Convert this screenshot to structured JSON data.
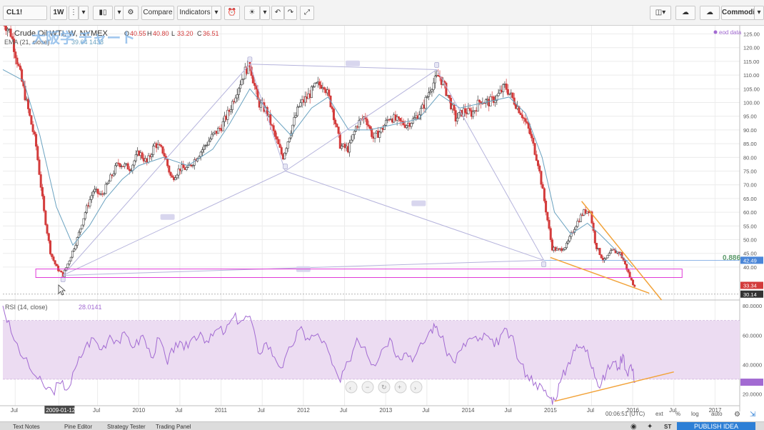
{
  "toolbar": {
    "symbol": "CL1!",
    "interval": "1W",
    "compare_label": "Compare",
    "indicators_label": "Indicators",
    "layout_label": "Commodity"
  },
  "chart_data": {
    "type": "candlestick",
    "title": "Crude Oil WTI, W, NYMEX",
    "ohlc": {
      "o_label": "O",
      "o": "40.55",
      "h_label": "H",
      "h": "40.80",
      "l_label": "L",
      "l": "33.20",
      "c_label": "C",
      "c": "36.51"
    },
    "ema_legend": "EMA (21, close)",
    "ema_value": "39.64 1438",
    "watermark": "大阪学 チャート",
    "eod_label": "eod data",
    "price_axis": [
      125,
      120,
      115,
      110,
      105,
      100,
      95,
      90,
      85,
      80,
      75,
      70,
      65,
      60,
      55,
      50,
      45,
      40
    ],
    "price_axis_labels": [
      "125.00",
      "120.00",
      "115.00",
      "110.00",
      "105.00",
      "100.00",
      "95.00",
      "90.00",
      "85.00",
      "80.00",
      "75.00",
      "70.00",
      "65.00",
      "60.00",
      "55.00",
      "50.00",
      "45.00",
      "40.00"
    ],
    "price_ylim": [
      28,
      128
    ],
    "price_markers": [
      {
        "value": 42.49,
        "label": "42.49",
        "color": "#4a86d8"
      },
      {
        "value": 33.34,
        "label": "33.34",
        "color": "#d33b3b"
      },
      {
        "value": 30.14,
        "label": "30.14",
        "color": "#333333"
      }
    ],
    "fib_label": "0.886",
    "x_axis": [
      {
        "t": 2008.5,
        "label": "Jul"
      },
      {
        "t": 2009.03,
        "label": "2009-01-12",
        "highlight": true
      },
      {
        "t": 2009.5,
        "label": "Jul"
      },
      {
        "t": 2010.0,
        "label": "2010"
      },
      {
        "t": 2010.5,
        "label": "Jul"
      },
      {
        "t": 2011.0,
        "label": "2011"
      },
      {
        "t": 2011.5,
        "label": "Jul"
      },
      {
        "t": 2012.0,
        "label": "2012"
      },
      {
        "t": 2012.5,
        "label": "Jul"
      },
      {
        "t": 2013.0,
        "label": "2013"
      },
      {
        "t": 2013.5,
        "label": "Jul"
      },
      {
        "t": 2014.0,
        "label": "2014"
      },
      {
        "t": 2014.5,
        "label": "Jul"
      },
      {
        "t": 2015.0,
        "label": "2015"
      },
      {
        "t": 2015.5,
        "label": "Jul"
      },
      {
        "t": 2016.0,
        "label": "2016"
      },
      {
        "t": 2016.5,
        "label": "Jul"
      },
      {
        "t": 2017.0,
        "label": "2017"
      }
    ],
    "xlim": [
      2008.35,
      2017.3
    ],
    "price_path": [
      [
        2008.35,
        130
      ],
      [
        2008.45,
        125
      ],
      [
        2008.6,
        105
      ],
      [
        2008.75,
        85
      ],
      [
        2008.85,
        60
      ],
      [
        2008.93,
        45
      ],
      [
        2009.0,
        40
      ],
      [
        2009.08,
        37
      ],
      [
        2009.15,
        42
      ],
      [
        2009.25,
        50
      ],
      [
        2009.35,
        60
      ],
      [
        2009.45,
        68
      ],
      [
        2009.55,
        66
      ],
      [
        2009.65,
        72
      ],
      [
        2009.75,
        78
      ],
      [
        2009.9,
        76
      ],
      [
        2010.0,
        82
      ],
      [
        2010.1,
        78
      ],
      [
        2010.2,
        85
      ],
      [
        2010.3,
        82
      ],
      [
        2010.4,
        72
      ],
      [
        2010.5,
        76
      ],
      [
        2010.6,
        76
      ],
      [
        2010.7,
        80
      ],
      [
        2010.8,
        84
      ],
      [
        2010.9,
        88
      ],
      [
        2011.0,
        91
      ],
      [
        2011.1,
        97
      ],
      [
        2011.2,
        105
      ],
      [
        2011.3,
        112
      ],
      [
        2011.35,
        114
      ],
      [
        2011.45,
        100
      ],
      [
        2011.55,
        97
      ],
      [
        2011.65,
        88
      ],
      [
        2011.75,
        80
      ],
      [
        2011.85,
        90
      ],
      [
        2011.95,
        99
      ],
      [
        2012.05,
        102
      ],
      [
        2012.15,
        106
      ],
      [
        2012.25,
        107
      ],
      [
        2012.35,
        98
      ],
      [
        2012.45,
        84
      ],
      [
        2012.55,
        83
      ],
      [
        2012.65,
        92
      ],
      [
        2012.75,
        95
      ],
      [
        2012.85,
        87
      ],
      [
        2012.95,
        90
      ],
      [
        2013.05,
        95
      ],
      [
        2013.15,
        93
      ],
      [
        2013.25,
        92
      ],
      [
        2013.35,
        94
      ],
      [
        2013.45,
        98
      ],
      [
        2013.55,
        106
      ],
      [
        2013.65,
        110
      ],
      [
        2013.75,
        103
      ],
      [
        2013.85,
        94
      ],
      [
        2013.95,
        97
      ],
      [
        2014.05,
        96
      ],
      [
        2014.15,
        101
      ],
      [
        2014.25,
        100
      ],
      [
        2014.35,
        102
      ],
      [
        2014.45,
        106
      ],
      [
        2014.55,
        101
      ],
      [
        2014.65,
        96
      ],
      [
        2014.75,
        89
      ],
      [
        2014.85,
        78
      ],
      [
        2014.95,
        60
      ],
      [
        2015.02,
        47
      ],
      [
        2015.1,
        46
      ],
      [
        2015.2,
        48
      ],
      [
        2015.3,
        55
      ],
      [
        2015.4,
        60
      ],
      [
        2015.48,
        61
      ],
      [
        2015.55,
        48
      ],
      [
        2015.65,
        42
      ],
      [
        2015.75,
        46
      ],
      [
        2015.85,
        45
      ],
      [
        2015.92,
        40
      ],
      [
        2015.97,
        36
      ],
      [
        2016.0,
        34
      ],
      [
        2016.03,
        33.3
      ]
    ],
    "ema_path": [
      [
        2008.35,
        112
      ],
      [
        2008.6,
        108
      ],
      [
        2008.8,
        88
      ],
      [
        2009.0,
        62
      ],
      [
        2009.2,
        48
      ],
      [
        2009.4,
        55
      ],
      [
        2009.6,
        65
      ],
      [
        2009.8,
        72
      ],
      [
        2010.0,
        77
      ],
      [
        2010.3,
        80
      ],
      [
        2010.6,
        77
      ],
      [
        2010.9,
        83
      ],
      [
        2011.1,
        92
      ],
      [
        2011.35,
        105
      ],
      [
        2011.6,
        96
      ],
      [
        2011.85,
        88
      ],
      [
        2012.1,
        98
      ],
      [
        2012.3,
        102
      ],
      [
        2012.55,
        90
      ],
      [
        2012.8,
        90
      ],
      [
        2013.1,
        92
      ],
      [
        2013.4,
        94
      ],
      [
        2013.65,
        103
      ],
      [
        2013.9,
        98
      ],
      [
        2014.2,
        100
      ],
      [
        2014.5,
        102
      ],
      [
        2014.7,
        96
      ],
      [
        2014.9,
        80
      ],
      [
        2015.05,
        60
      ],
      [
        2015.25,
        52
      ],
      [
        2015.45,
        56
      ],
      [
        2015.6,
        52
      ],
      [
        2015.8,
        46
      ],
      [
        2016.0,
        40
      ]
    ],
    "pattern": {
      "points": [
        {
          "id": "X",
          "t": 2009.08,
          "p": 37
        },
        {
          "id": "A",
          "t": 2011.35,
          "p": 114
        },
        {
          "id": "B",
          "t": 2011.78,
          "p": 75
        },
        {
          "id": "C",
          "t": 2013.62,
          "p": 112
        },
        {
          "id": "D",
          "t": 2014.92,
          "p": 42.5
        }
      ],
      "ratio_labels": [
        {
          "text": "0.618",
          "t": 2010.35,
          "p": 58
        },
        {
          "text": "0.618",
          "t": 2012.6,
          "p": 114
        },
        {
          "text": "0.618",
          "t": 2013.4,
          "p": 63
        },
        {
          "text": "0.618",
          "t": 2012.0,
          "p": 39
        }
      ]
    },
    "rectangle": {
      "t1": 2008.75,
      "t2": 2016.6,
      "p1": 36.2,
      "p2": 39.3
    },
    "trendlines": [
      {
        "t1": 2015.38,
        "p1": 64,
        "t2": 2016.35,
        "p2": 28
      },
      {
        "t1": 2015.0,
        "p1": 43.5,
        "t2": 2016.2,
        "p2": 30.5
      }
    ],
    "rsi": {
      "legend": "RSI (14, close)",
      "value": "28.0141",
      "axis": [
        80,
        60,
        40,
        20
      ],
      "axis_labels": [
        "80.0000",
        "60.0000",
        "40.0000",
        "20.0000"
      ],
      "ylim": [
        12,
        82
      ],
      "band": [
        30,
        70
      ],
      "path": [
        [
          2008.35,
          80
        ],
        [
          2008.45,
          62
        ],
        [
          2008.6,
          44
        ],
        [
          2008.75,
          32
        ],
        [
          2008.85,
          25
        ],
        [
          2008.95,
          22
        ],
        [
          2009.05,
          27
        ],
        [
          2009.15,
          24
        ],
        [
          2009.25,
          40
        ],
        [
          2009.35,
          52
        ],
        [
          2009.45,
          58
        ],
        [
          2009.55,
          50
        ],
        [
          2009.65,
          60
        ],
        [
          2009.75,
          56
        ],
        [
          2009.85,
          60
        ],
        [
          2009.95,
          52
        ],
        [
          2010.05,
          60
        ],
        [
          2010.15,
          45
        ],
        [
          2010.25,
          58
        ],
        [
          2010.35,
          40
        ],
        [
          2010.45,
          55
        ],
        [
          2010.55,
          50
        ],
        [
          2010.65,
          58
        ],
        [
          2010.75,
          62
        ],
        [
          2010.85,
          55
        ],
        [
          2010.95,
          64
        ],
        [
          2011.05,
          62
        ],
        [
          2011.15,
          72
        ],
        [
          2011.25,
          70
        ],
        [
          2011.35,
          73
        ],
        [
          2011.45,
          48
        ],
        [
          2011.55,
          55
        ],
        [
          2011.65,
          45
        ],
        [
          2011.75,
          38
        ],
        [
          2011.85,
          52
        ],
        [
          2011.95,
          64
        ],
        [
          2012.05,
          58
        ],
        [
          2012.15,
          60
        ],
        [
          2012.25,
          56
        ],
        [
          2012.35,
          40
        ],
        [
          2012.45,
          28
        ],
        [
          2012.55,
          42
        ],
        [
          2012.65,
          58
        ],
        [
          2012.75,
          52
        ],
        [
          2012.85,
          40
        ],
        [
          2012.95,
          50
        ],
        [
          2013.05,
          58
        ],
        [
          2013.15,
          46
        ],
        [
          2013.25,
          48
        ],
        [
          2013.35,
          45
        ],
        [
          2013.45,
          54
        ],
        [
          2013.55,
          64
        ],
        [
          2013.62,
          66
        ],
        [
          2013.72,
          52
        ],
        [
          2013.82,
          42
        ],
        [
          2013.92,
          50
        ],
        [
          2014.02,
          58
        ],
        [
          2014.12,
          56
        ],
        [
          2014.22,
          60
        ],
        [
          2014.32,
          52
        ],
        [
          2014.42,
          62
        ],
        [
          2014.52,
          60
        ],
        [
          2014.62,
          42
        ],
        [
          2014.72,
          33
        ],
        [
          2014.82,
          28
        ],
        [
          2014.92,
          22
        ],
        [
          2015.0,
          17
        ],
        [
          2015.05,
          16
        ],
        [
          2015.12,
          28
        ],
        [
          2015.2,
          38
        ],
        [
          2015.28,
          50
        ],
        [
          2015.36,
          52
        ],
        [
          2015.45,
          50
        ],
        [
          2015.52,
          38
        ],
        [
          2015.6,
          24
        ],
        [
          2015.68,
          35
        ],
        [
          2015.76,
          42
        ],
        [
          2015.83,
          38
        ],
        [
          2015.88,
          47
        ],
        [
          2015.93,
          34
        ],
        [
          2015.98,
          40
        ],
        [
          2016.03,
          28
        ]
      ],
      "trendline": {
        "t1": 2015.05,
        "p1": 15,
        "t2": 2016.5,
        "p2": 35
      }
    },
    "clock": "00:06:51 (UTC)",
    "axis_buttons": [
      "ext",
      "%",
      "log",
      "auto"
    ]
  },
  "bottom_tabs": [
    "Text Notes",
    "Pine Editor",
    "Strategy Tester",
    "Trading Panel"
  ],
  "publish_label": "PUBLISH IDEA",
  "colors": {
    "up": "#3a3a3a",
    "down": "#d33b3b",
    "ema": "#6aa2c0",
    "pattern": "#b5b3dc",
    "rect": "#e03ad8",
    "trend": "#f2a33a",
    "rsi": "#a26ad2",
    "rsi_band": "#ecdcf2"
  }
}
